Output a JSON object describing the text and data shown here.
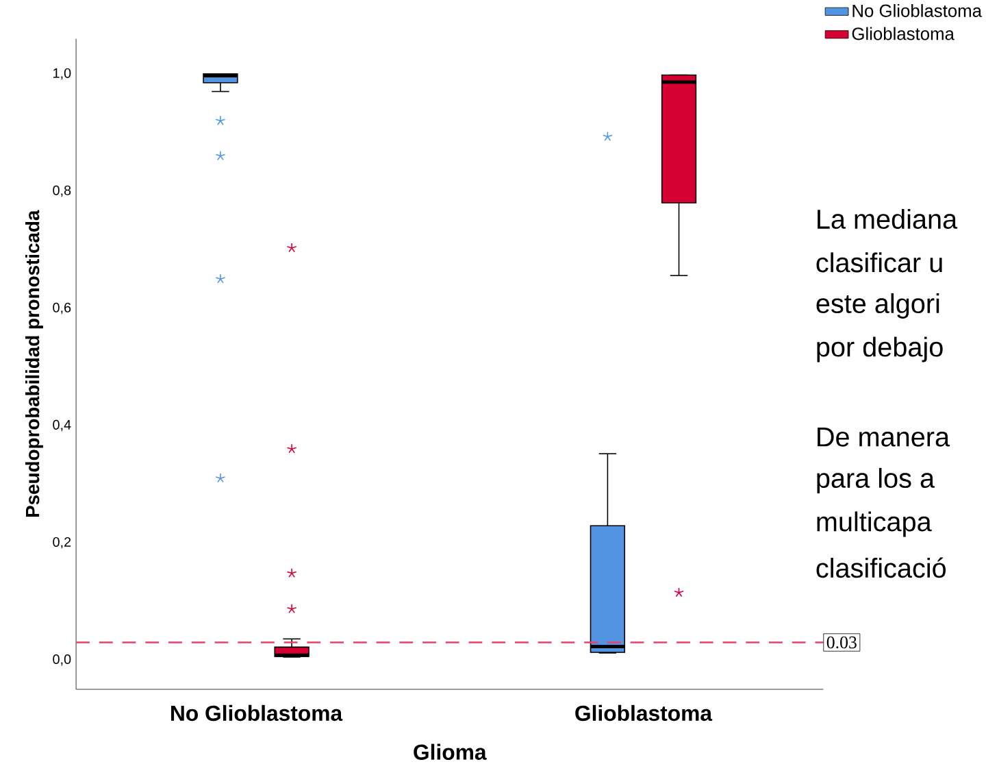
{
  "chart_data": {
    "type": "box",
    "ylabel": "Pseudoprobabilidad pronosticada",
    "xlabel": "Glioma",
    "categories": [
      "No Glioblastoma",
      "Glioblastoma"
    ],
    "series": [
      {
        "name": "No Glioblastoma",
        "color": "#5294e2",
        "boxes": [
          {
            "low": 0.97,
            "q1": 0.985,
            "median": 0.997,
            "q3": 1.0,
            "high": 1.0,
            "outliers": [
              0.92,
              0.86,
              0.65,
              0.31
            ]
          },
          {
            "low": 0.012,
            "q1": 0.013,
            "median": 0.023,
            "q3": 0.229,
            "high": 0.352,
            "outliers": [
              0.893
            ]
          }
        ]
      },
      {
        "name": "Glioblastoma",
        "color": "#d60032",
        "boxes": [
          {
            "low": 0.005,
            "q1": 0.006,
            "median": 0.008,
            "q3": 0.022,
            "high": 0.036,
            "outliers": [
              0.703,
              0.36,
              0.148,
              0.087
            ]
          },
          {
            "low": 0.656,
            "q1": 0.78,
            "median": 0.986,
            "q3": 0.998,
            "high": 0.998,
            "outliers": [
              0.115
            ]
          }
        ]
      }
    ],
    "ylim": [
      -0.05,
      1.06
    ],
    "yticks": [
      {
        "value": 0,
        "label": "0,0"
      },
      {
        "value": 0.2,
        "label": "0,2"
      },
      {
        "value": 0.4,
        "label": "0,4"
      },
      {
        "value": 0.6,
        "label": "0,6"
      },
      {
        "value": 0.8,
        "label": "0,8"
      },
      {
        "value": 1.0,
        "label": "1,0"
      }
    ],
    "ref_lines": [
      {
        "axis": "y",
        "value": 0.03,
        "label": "0.03",
        "color": "#e8416b",
        "line_style": "dashed"
      }
    ],
    "legend": "top right",
    "grid": false,
    "marker": "star",
    "annotations": [
      "La mediana",
      "clasificar u",
      "este algori",
      "por debajo",
      "De manera",
      "para los a",
      "multicapa",
      "clasificació"
    ]
  }
}
